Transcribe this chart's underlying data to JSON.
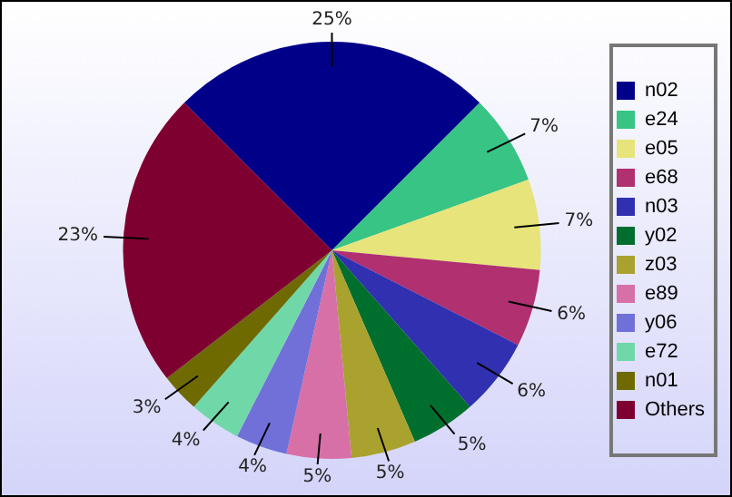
{
  "chart_data": {
    "type": "pie",
    "categories": [
      "n02",
      "e24",
      "e05",
      "e68",
      "n03",
      "y02",
      "z03",
      "e89",
      "y06",
      "e72",
      "n01",
      "Others"
    ],
    "values": [
      25,
      7,
      7,
      6,
      6,
      5,
      5,
      5,
      4,
      4,
      3,
      23
    ],
    "colors": [
      "#000088",
      "#38c484",
      "#e6e47a",
      "#b03070",
      "#3030b0",
      "#006e2c",
      "#aaa22e",
      "#d870a8",
      "#7070d8",
      "#70d8a8",
      "#6e6a00",
      "#7e0030"
    ],
    "value_labels": [
      "25%",
      "7%",
      "7%",
      "6%",
      "6%",
      "5%",
      "5%",
      "5%",
      "4%",
      "4%",
      "3%",
      "23%"
    ],
    "legend": "right"
  }
}
